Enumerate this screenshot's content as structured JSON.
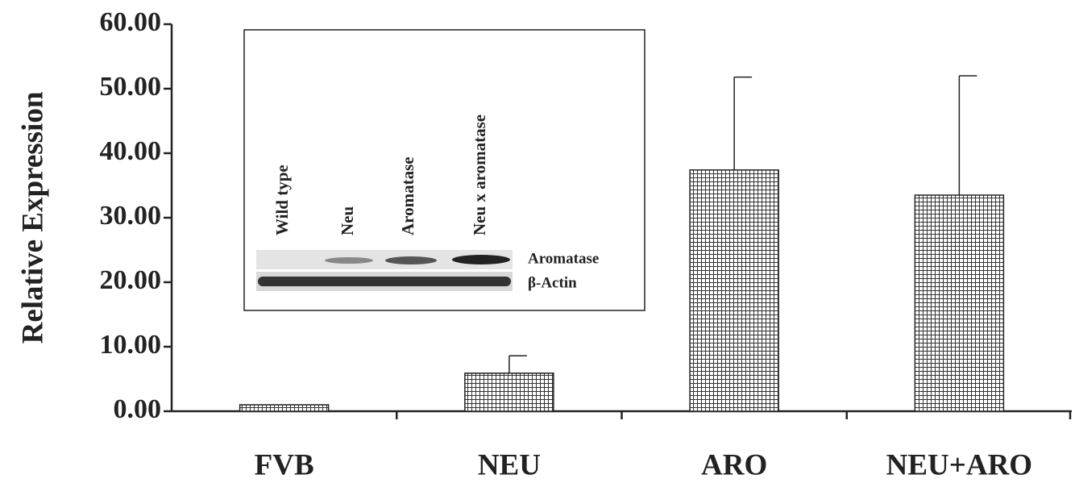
{
  "chart_data": {
    "type": "bar",
    "y_label": "Relative Expression",
    "categories": [
      "FVB",
      "NEU",
      "ARO",
      "NEU+ARO"
    ],
    "values": [
      1.0,
      5.9,
      37.4,
      33.5
    ],
    "errors": [
      0,
      2.7,
      14.4,
      18.5
    ],
    "color": "#333333",
    "ylim": [
      0,
      60
    ],
    "yticks": [
      {
        "value": 0,
        "label": "0.00"
      },
      {
        "value": 10,
        "label": "10.00"
      },
      {
        "value": 20,
        "label": "20.00"
      },
      {
        "value": 30,
        "label": "30.00"
      },
      {
        "value": 40,
        "label": "40.00"
      },
      {
        "value": 50,
        "label": "50.00"
      },
      {
        "value": 60,
        "label": "60.00"
      }
    ],
    "inset": {
      "lanes": [
        "Wild type",
        "Neu",
        "Aromatase",
        "Neu x aromatase"
      ],
      "rows": [
        "Aromatase",
        "β-Actin"
      ]
    }
  }
}
